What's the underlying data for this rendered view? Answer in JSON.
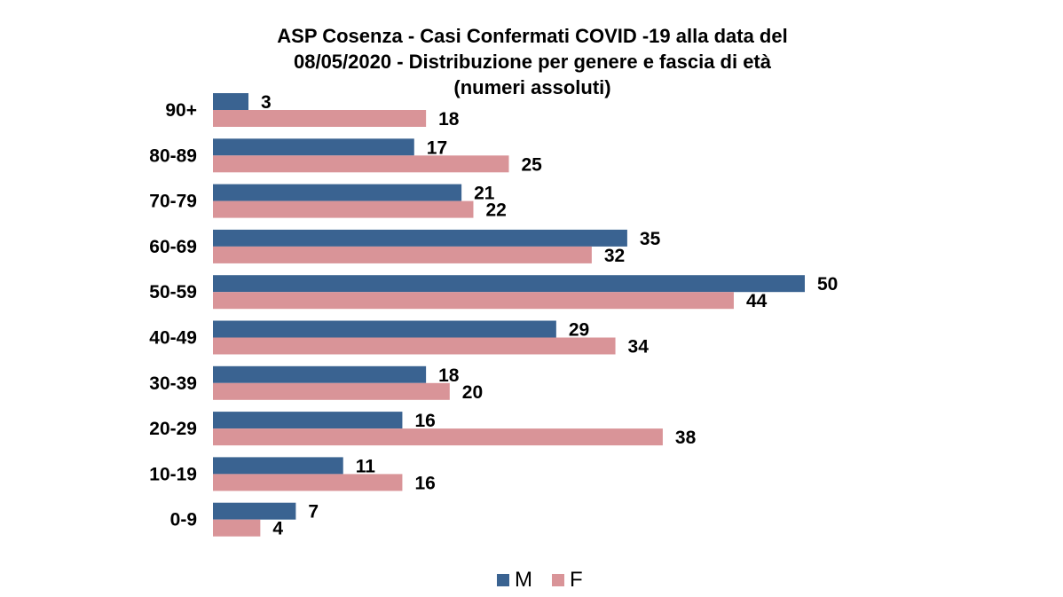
{
  "chart_data": {
    "type": "bar",
    "orientation": "horizontal",
    "title_lines": [
      "ASP Cosenza - Casi Confermati COVID -19 alla data del",
      "08/05/2020 -  Distribuzione per genere e fascia di età",
      "(numeri assoluti)"
    ],
    "categories": [
      "90+",
      "80-89",
      "70-79",
      "60-69",
      "50-59",
      "40-49",
      "30-39",
      "20-29",
      "10-19",
      "0-9"
    ],
    "series": [
      {
        "name": "M",
        "color": "#3a6391",
        "values": [
          3,
          17,
          21,
          35,
          50,
          29,
          18,
          16,
          11,
          7
        ]
      },
      {
        "name": "F",
        "color": "#d99498",
        "values": [
          18,
          25,
          22,
          32,
          44,
          34,
          20,
          38,
          16,
          4
        ]
      }
    ],
    "xlabel": "",
    "ylabel": "",
    "xlim": [
      0,
      50
    ],
    "grid": false,
    "data_labels": true,
    "legend": "bottom-center"
  }
}
